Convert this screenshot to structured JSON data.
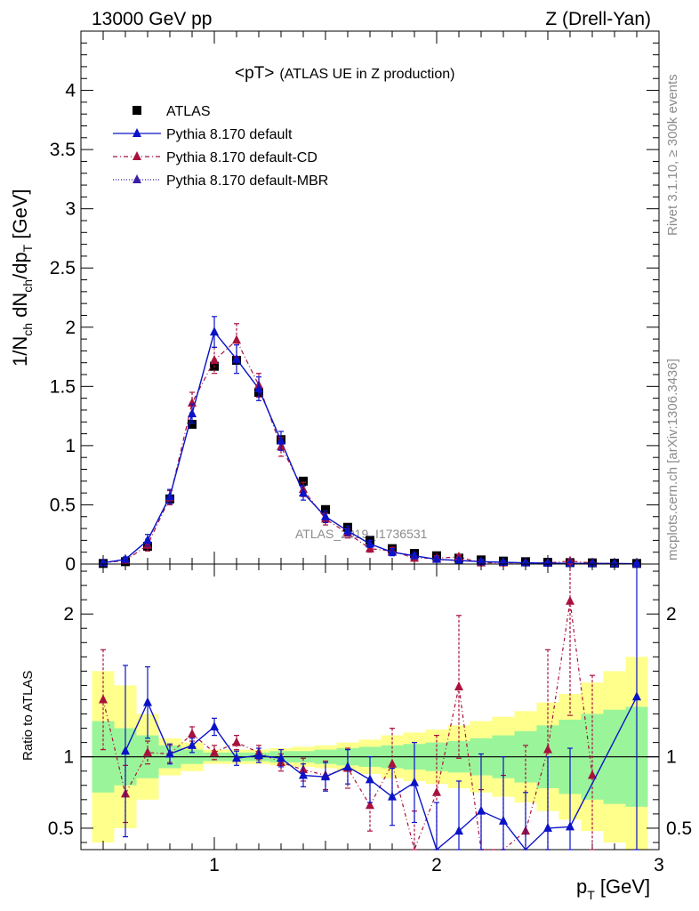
{
  "header": {
    "left": "13000 GeV pp",
    "right": "Z (Drell-Yan)"
  },
  "side": {
    "rivet": "Rivet 3.1.10, ≥ 300k events",
    "mcplots": "mcplots.cern.ch [arXiv:1306.3436]"
  },
  "chart_data": {
    "type": "line",
    "title": "<pT>",
    "subtitle": "(ATLAS UE in Z production)",
    "watermark": "ATLAS_2019_I1736531",
    "xlabel": "p",
    "xlabel_sub": "T",
    "xlabel_unit": " [GeV]",
    "ylabel_main": "1/N",
    "ylabel_ratio": "Ratio to ATLAS",
    "xlim": [
      0.4,
      3.0
    ],
    "ylim_main": [
      0,
      4.5
    ],
    "ylim_ratio": [
      0.35,
      2.35
    ],
    "x_ticks": [
      1,
      2,
      3
    ],
    "y_ticks_main": [
      0,
      0.5,
      1,
      1.5,
      2,
      2.5,
      3,
      3.5,
      4
    ],
    "y_tick_labels_main": [
      "0",
      "0.5",
      "1",
      "1.5",
      "2",
      "2.5",
      "3",
      "3.5",
      "4"
    ],
    "y_ticks_ratio": [
      0.5,
      1,
      2
    ],
    "y_tick_labels_ratio": [
      "0.5",
      "1",
      "2"
    ],
    "legend": [
      {
        "label": "ATLAS",
        "color": "#000000",
        "marker": "square"
      },
      {
        "label": "Pythia 8.170 default",
        "color": "#0b13c8",
        "marker": "triangle"
      },
      {
        "label": "Pythia 8.170 default-CD",
        "color": "#a8113c",
        "marker": "triangle"
      },
      {
        "label": "Pythia 8.170 default-MBR",
        "color": "#3b1ea6",
        "marker": "triangle"
      }
    ],
    "x": [
      0.5,
      0.6,
      0.7,
      0.8,
      0.9,
      1.0,
      1.1,
      1.2,
      1.3,
      1.4,
      1.5,
      1.6,
      1.7,
      1.8,
      1.9,
      2.0,
      2.1,
      2.2,
      2.3,
      2.4,
      2.5,
      2.6,
      2.7,
      2.8,
      2.9
    ],
    "atlas": [
      0.005,
      0.02,
      0.15,
      0.55,
      1.18,
      1.67,
      1.72,
      1.45,
      1.05,
      0.7,
      0.46,
      0.31,
      0.2,
      0.13,
      0.09,
      0.07,
      0.05,
      0.035,
      0.025,
      0.02,
      0.015,
      0.012,
      0.01,
      0.007,
      0.005
    ],
    "series": [
      {
        "name": "Pythia 8.170 default",
        "values": [
          0.01,
          0.04,
          0.2,
          0.57,
          1.27,
          1.96,
          1.73,
          1.48,
          1.04,
          0.6,
          0.4,
          0.28,
          0.17,
          0.1,
          0.07,
          0.04,
          0.03,
          0.02,
          0.015,
          0.01,
          0.008,
          0.006,
          0.005,
          0.004,
          0.003
        ],
        "errors": [
          0.01,
          0.02,
          0.05,
          0.06,
          0.08,
          0.13,
          0.12,
          0.1,
          0.08,
          0.06,
          0.05,
          0.04,
          0.03,
          0.03,
          0.02,
          0.02,
          0.02,
          0.02,
          0.015,
          0.01,
          0.01,
          0.01,
          0.008,
          0.008,
          0.008
        ]
      },
      {
        "name": "Pythia 8.170 default-CD",
        "values": [
          0.01,
          0.03,
          0.16,
          0.56,
          1.36,
          1.72,
          1.89,
          1.51,
          0.99,
          0.63,
          0.38,
          0.26,
          0.13,
          0.11,
          0.05,
          0.05,
          0.06,
          0.01,
          0.01,
          0.01,
          0.01,
          0.025,
          0.009,
          0.004,
          0.003
        ],
        "errors": [
          0.01,
          0.02,
          0.05,
          0.06,
          0.09,
          0.11,
          0.14,
          0.1,
          0.08,
          0.06,
          0.05,
          0.04,
          0.03,
          0.03,
          0.02,
          0.02,
          0.02,
          0.02,
          0.015,
          0.01,
          0.01,
          0.01,
          0.008,
          0.008,
          0.008
        ]
      }
    ],
    "ratio": {
      "default": [
        null,
        1.04,
        1.38,
        1.02,
        1.08,
        1.21,
        0.99,
        1.01,
        0.99,
        0.87,
        0.86,
        0.93,
        0.84,
        0.72,
        0.82,
        0.28,
        0.48,
        0.62,
        0.55,
        0.25,
        0.5,
        0.51,
        null,
        null,
        1.42
      ],
      "default_errors": [
        0,
        0.6,
        0.25,
        0.07,
        0.05,
        0.06,
        0.05,
        0.05,
        0.06,
        0.08,
        0.1,
        0.12,
        0.16,
        0.2,
        0.28,
        0.4,
        0.35,
        0.4,
        0.45,
        0.5,
        0.5,
        0.55,
        0,
        0,
        1.5
      ],
      "cd": [
        1.4,
        0.74,
        1.03,
        1.02,
        1.16,
        1.03,
        1.1,
        1.03,
        0.96,
        0.91,
        0.87,
        0.92,
        0.66,
        0.95,
        0.32,
        0.75,
        1.49,
        0.27,
        0.32,
        0.48,
        1.05,
        2.09,
        0.87,
        null,
        null
      ],
      "cd_errors": [
        0.35,
        0.2,
        0.08,
        0.06,
        0.05,
        0.05,
        0.05,
        0.05,
        0.06,
        0.08,
        0.1,
        0.14,
        0.18,
        0.25,
        0.3,
        0.4,
        0.5,
        0.5,
        0.55,
        0.6,
        0.7,
        0.8,
        0.7,
        0,
        0
      ],
      "band_green": [
        0.25,
        0.2,
        0.15,
        0.08,
        0.05,
        0.03,
        0.03,
        0.03,
        0.04,
        0.04,
        0.05,
        0.06,
        0.07,
        0.08,
        0.09,
        0.1,
        0.11,
        0.13,
        0.15,
        0.18,
        0.22,
        0.26,
        0.3,
        0.33,
        0.35
      ],
      "band_yellow": [
        0.6,
        0.5,
        0.3,
        0.13,
        0.1,
        0.05,
        0.05,
        0.05,
        0.06,
        0.07,
        0.08,
        0.1,
        0.12,
        0.15,
        0.17,
        0.19,
        0.22,
        0.25,
        0.28,
        0.32,
        0.38,
        0.44,
        0.52,
        0.6,
        0.7
      ]
    }
  }
}
